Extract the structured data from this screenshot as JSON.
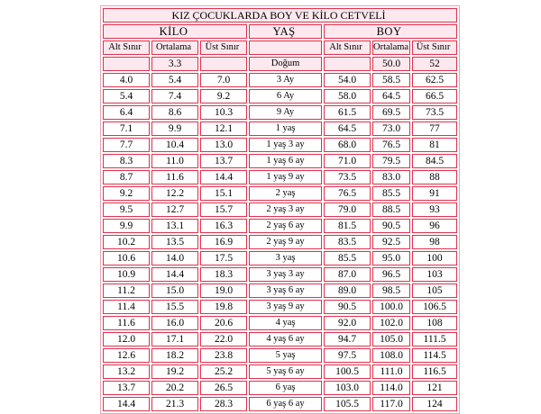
{
  "title": "KIZ ÇOCUKLARDA BOY VE KİLO CETVELİ",
  "groups": {
    "kilo": "KİLO",
    "yas": "YAŞ",
    "boy": "BOY"
  },
  "columns": {
    "kilo": [
      "Alt Sınır",
      "Ortalama",
      "Üst Sınır"
    ],
    "boy": [
      "Alt Sınır",
      "Ortalama",
      "Üst Sınır"
    ]
  },
  "rows": [
    [
      "",
      "3.3",
      "",
      "Doğum",
      "",
      "50.0",
      "52"
    ],
    [
      "4.0",
      "5.4",
      "7.0",
      "3 Ay",
      "54.0",
      "58.5",
      "62.5"
    ],
    [
      "5.4",
      "7.4",
      "9.2",
      "6 Ay",
      "58.0",
      "64.5",
      "66.5"
    ],
    [
      "6.4",
      "8.6",
      "10.3",
      "9 Ay",
      "61.5",
      "69.5",
      "73.5"
    ],
    [
      "7.1",
      "9.9",
      "12.1",
      "1 yaş",
      "64.5",
      "73.0",
      "77"
    ],
    [
      "7.7",
      "10.4",
      "13.0",
      "1 yaş 3 ay",
      "68.0",
      "76.5",
      "81"
    ],
    [
      "8.3",
      "11.0",
      "13.7",
      "1 yaş 6 ay",
      "71.0",
      "79.5",
      "84.5"
    ],
    [
      "8.7",
      "11.6",
      "14.4",
      "1 yaş 9 ay",
      "73.5",
      "83.0",
      "88"
    ],
    [
      "9.2",
      "12.2",
      "15.1",
      "2 yaş",
      "76.5",
      "85.5",
      "91"
    ],
    [
      "9.5",
      "12.7",
      "15.7",
      "2 yaş 3 ay",
      "79.0",
      "88.5",
      "93"
    ],
    [
      "9.9",
      "13.1",
      "16.3",
      "2 yaş 6 ay",
      "81.5",
      "90.5",
      "96"
    ],
    [
      "10.2",
      "13.5",
      "16.9",
      "2 yaş 9 ay",
      "83.5",
      "92.5",
      "98"
    ],
    [
      "10.6",
      "14.0",
      "17.5",
      "3 yaş",
      "85.5",
      "95.0",
      "100"
    ],
    [
      "10.9",
      "14.4",
      "18.3",
      "3 yaş 3 ay",
      "87.0",
      "96.5",
      "103"
    ],
    [
      "11.2",
      "15.0",
      "19.0",
      "3 yaş 6 ay",
      "89.0",
      "98.5",
      "105"
    ],
    [
      "11.4",
      "15.5",
      "19.8",
      "3 yaş 9 ay",
      "90.5",
      "100.0",
      "106.5"
    ],
    [
      "11.6",
      "16.0",
      "20.6",
      "4 yaş",
      "92.0",
      "102.0",
      "108"
    ],
    [
      "12.0",
      "17.1",
      "22.0",
      "4 yaş 6 ay",
      "94.7",
      "105.0",
      "111.5"
    ],
    [
      "12.6",
      "18.2",
      "23.8",
      "5 yaş",
      "97.5",
      "108.0",
      "114.5"
    ],
    [
      "13.2",
      "19.2",
      "25.2",
      "5 yaş 6 ay",
      "100.5",
      "111.0",
      "116.5"
    ],
    [
      "13.7",
      "20.2",
      "26.5",
      "6 yaş",
      "103.0",
      "114.0",
      "121"
    ],
    [
      "14.4",
      "21.3",
      "28.3",
      "6 yaş 6 ay",
      "105.5",
      "117.0",
      "124"
    ]
  ],
  "colors": {
    "border": "#e0304c",
    "band": "#fce8ee",
    "background": "#ffffff"
  }
}
